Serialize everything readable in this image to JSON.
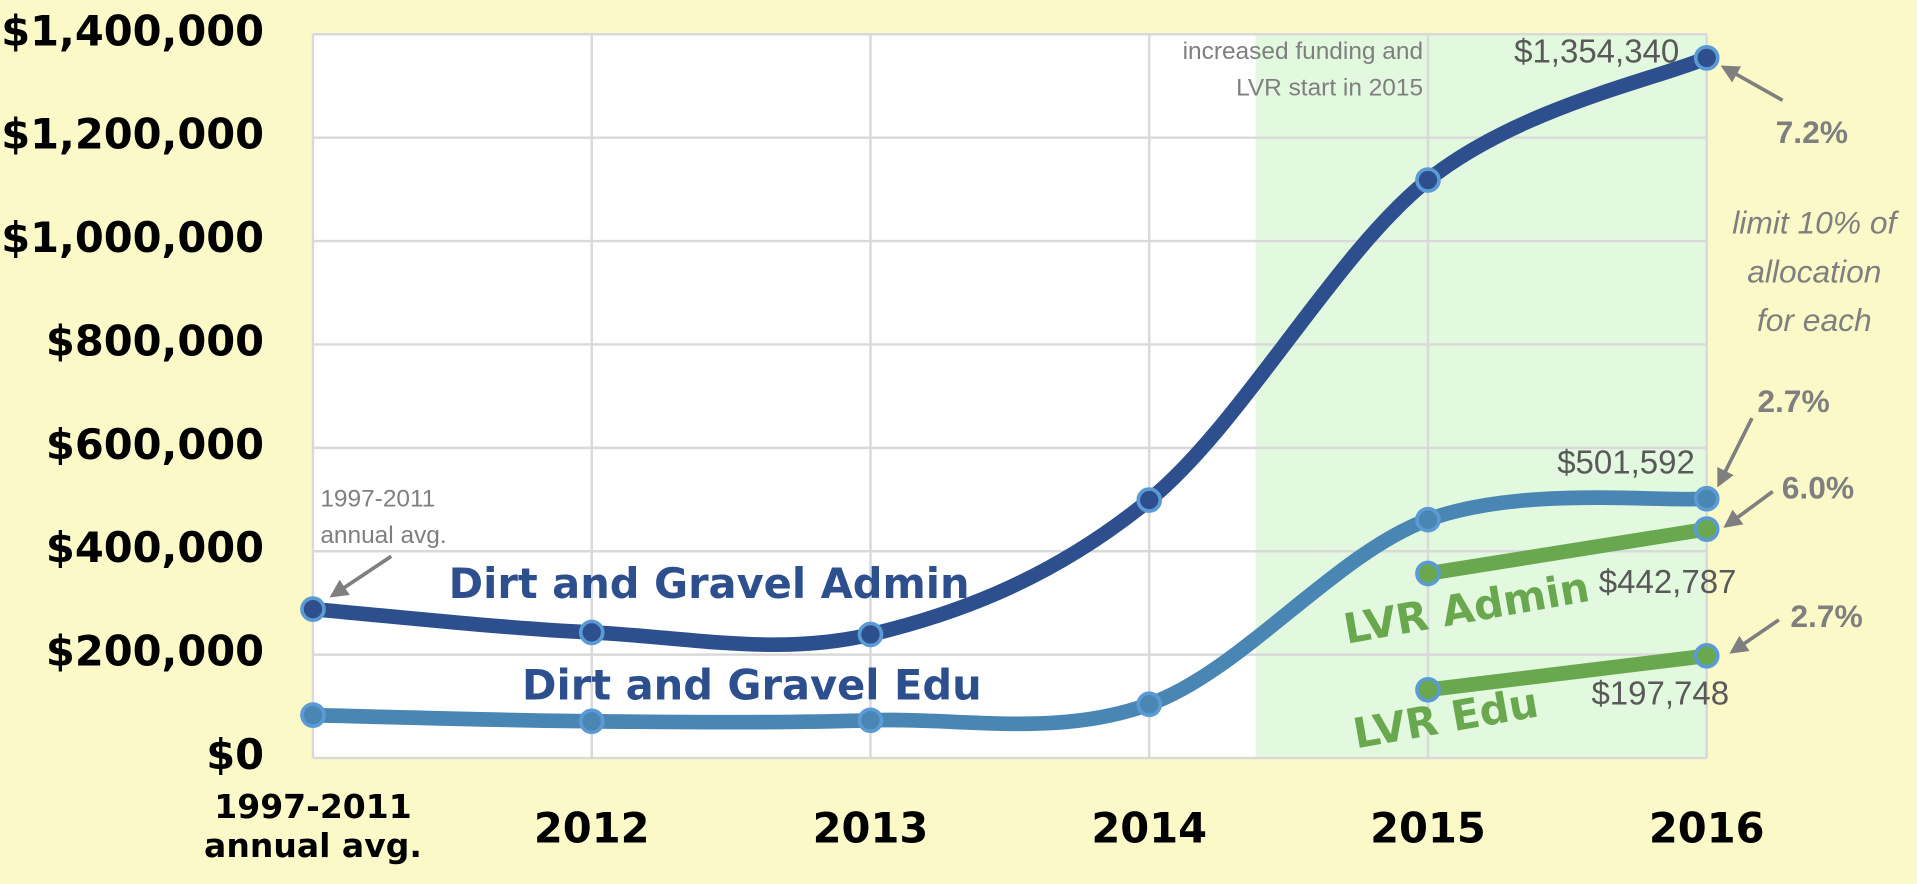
{
  "chart_data": {
    "type": "line",
    "categories": [
      "1997-2011 annual avg.",
      "2012",
      "2013",
      "2014",
      "2015",
      "2016"
    ],
    "series": [
      {
        "name": "Dirt and Gravel Admin",
        "color": "#2d4f8e",
        "values": [
          288000,
          243000,
          239000,
          499000,
          1118000,
          1354340
        ],
        "value_labels": [
          null,
          null,
          null,
          null,
          null,
          "$1,354,340"
        ]
      },
      {
        "name": "Dirt and Gravel Edu",
        "color": "#4a86b3",
        "values": [
          83000,
          71000,
          73000,
          104000,
          461000,
          501592
        ],
        "value_labels": [
          null,
          null,
          null,
          null,
          null,
          "$501,592"
        ]
      },
      {
        "name": "LVR Admin",
        "color": "#6aa84f",
        "values": [
          null,
          null,
          null,
          null,
          357000,
          442787
        ],
        "value_labels": [
          null,
          null,
          null,
          null,
          null,
          "$442,787"
        ]
      },
      {
        "name": "LVR Edu",
        "color": "#6aa84f",
        "values": [
          null,
          null,
          null,
          null,
          132000,
          197748
        ],
        "value_labels": [
          null,
          null,
          null,
          null,
          null,
          "$197,748"
        ]
      }
    ],
    "ylim": [
      0,
      1400000
    ],
    "yticks": [
      {
        "value": 0,
        "label": "$0"
      },
      {
        "value": 200000,
        "label": "$200,000"
      },
      {
        "value": 400000,
        "label": "$400,000"
      },
      {
        "value": 600000,
        "label": "$600,000"
      },
      {
        "value": 800000,
        "label": "$800,000"
      },
      {
        "value": 1000000,
        "label": "$1,000,000"
      },
      {
        "value": 1200000,
        "label": "$1,200,000"
      },
      {
        "value": 1400000,
        "label": "$1,400,000"
      }
    ],
    "grid": true,
    "annotations": [
      {
        "text": [
          "1997-2011",
          "annual avg."
        ]
      },
      {
        "text": [
          "increased funding and",
          "LVR start in 2015"
        ]
      },
      {
        "text": [
          "7.2%"
        ]
      },
      {
        "text": [
          "limit 10% of",
          "allocation",
          "for each"
        ]
      },
      {
        "text": [
          "2.7%"
        ]
      },
      {
        "text": [
          "6.0%"
        ]
      },
      {
        "text": [
          "2.7%"
        ]
      }
    ]
  }
}
